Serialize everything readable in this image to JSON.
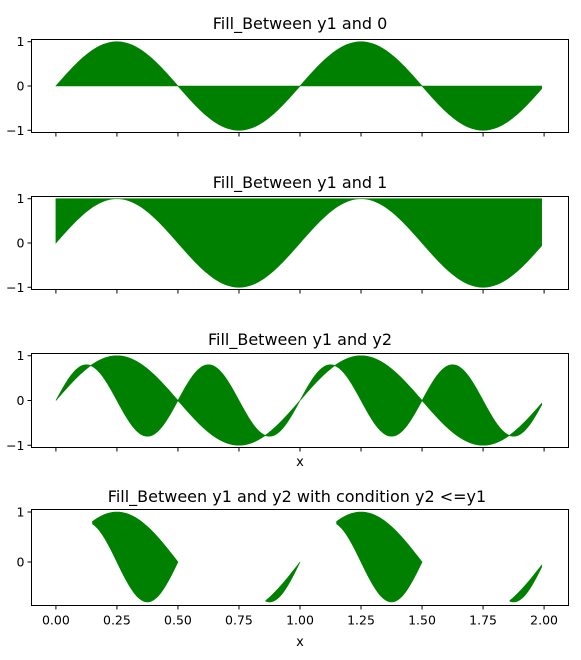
{
  "fill_color": "#008000",
  "chart_data": [
    {
      "type": "area",
      "title": "Fill_Between y1 and 0",
      "xlabel": "",
      "ylabel": "",
      "xlim": [
        -0.1,
        2.1
      ],
      "ylim": [
        -1.05,
        1.05
      ],
      "xticks": [
        0.0,
        0.25,
        0.5,
        0.75,
        1.0,
        1.25,
        1.5,
        1.75,
        2.0
      ],
      "xtick_labels_visible": false,
      "yticks": [
        -1,
        0,
        1
      ],
      "ytick_labels": [
        "−1",
        "0",
        "1"
      ],
      "series": [
        {
          "x_start": 0.0,
          "x_end": 1.99,
          "x_step": 0.01,
          "formula": "sin(2*pi*x)"
        },
        {
          "x_start": 0.0,
          "x_end": 1.99,
          "x_step": 0.01,
          "constant": 0
        }
      ],
      "fill": "between series 1 and series 2"
    },
    {
      "type": "area",
      "title": "Fill_Between y1 and 1",
      "xlabel": "",
      "ylabel": "",
      "xlim": [
        -0.1,
        2.1
      ],
      "ylim": [
        -1.05,
        1.05
      ],
      "xticks": [
        0.0,
        0.25,
        0.5,
        0.75,
        1.0,
        1.25,
        1.5,
        1.75,
        2.0
      ],
      "xtick_labels_visible": false,
      "yticks": [
        -1,
        0,
        1
      ],
      "ytick_labels": [
        "−1",
        "0",
        "1"
      ],
      "series": [
        {
          "x_start": 0.0,
          "x_end": 1.99,
          "x_step": 0.01,
          "formula": "sin(2*pi*x)"
        },
        {
          "x_start": 0.0,
          "x_end": 1.99,
          "x_step": 0.01,
          "constant": 1
        }
      ],
      "fill": "between series 1 and series 2"
    },
    {
      "type": "area",
      "title": "Fill_Between y1 and y2",
      "xlabel": "x",
      "ylabel": "",
      "xlim": [
        -0.1,
        2.1
      ],
      "ylim": [
        -1.05,
        1.05
      ],
      "xticks": [
        0.0,
        0.25,
        0.5,
        0.75,
        1.0,
        1.25,
        1.5,
        1.75,
        2.0
      ],
      "xtick_labels_visible": false,
      "yticks": [
        -1,
        0,
        1
      ],
      "ytick_labels": [
        "−1",
        "0",
        "1"
      ],
      "series": [
        {
          "x_start": 0.0,
          "x_end": 1.99,
          "x_step": 0.01,
          "formula": "sin(2*pi*x)"
        },
        {
          "x_start": 0.0,
          "x_end": 1.99,
          "x_step": 0.01,
          "formula": "0.8*sin(4*pi*x)"
        }
      ],
      "fill": "between series 1 and series 2"
    },
    {
      "type": "area",
      "title": "Fill_Between y1 and y2 with condition y2 <=y1",
      "xlabel": "x",
      "ylabel": "",
      "xlim": [
        -0.1,
        2.1
      ],
      "ylim": [
        -0.87,
        1.05
      ],
      "xticks": [
        0.0,
        0.25,
        0.5,
        0.75,
        1.0,
        1.25,
        1.5,
        1.75,
        2.0
      ],
      "xtick_labels_visible": true,
      "xtick_labels": [
        "0.00",
        "0.25",
        "0.50",
        "0.75",
        "1.00",
        "1.25",
        "1.50",
        "1.75",
        "2.00"
      ],
      "yticks": [
        0,
        1
      ],
      "ytick_labels": [
        "0",
        "1"
      ],
      "series": [
        {
          "x_start": 0.0,
          "x_end": 1.99,
          "x_step": 0.01,
          "formula": "sin(2*pi*x)"
        },
        {
          "x_start": 0.0,
          "x_end": 1.99,
          "x_step": 0.01,
          "formula": "0.8*sin(4*pi*x)"
        }
      ],
      "fill": "between series 1 and series 2 where series 2 <= series 1"
    }
  ]
}
